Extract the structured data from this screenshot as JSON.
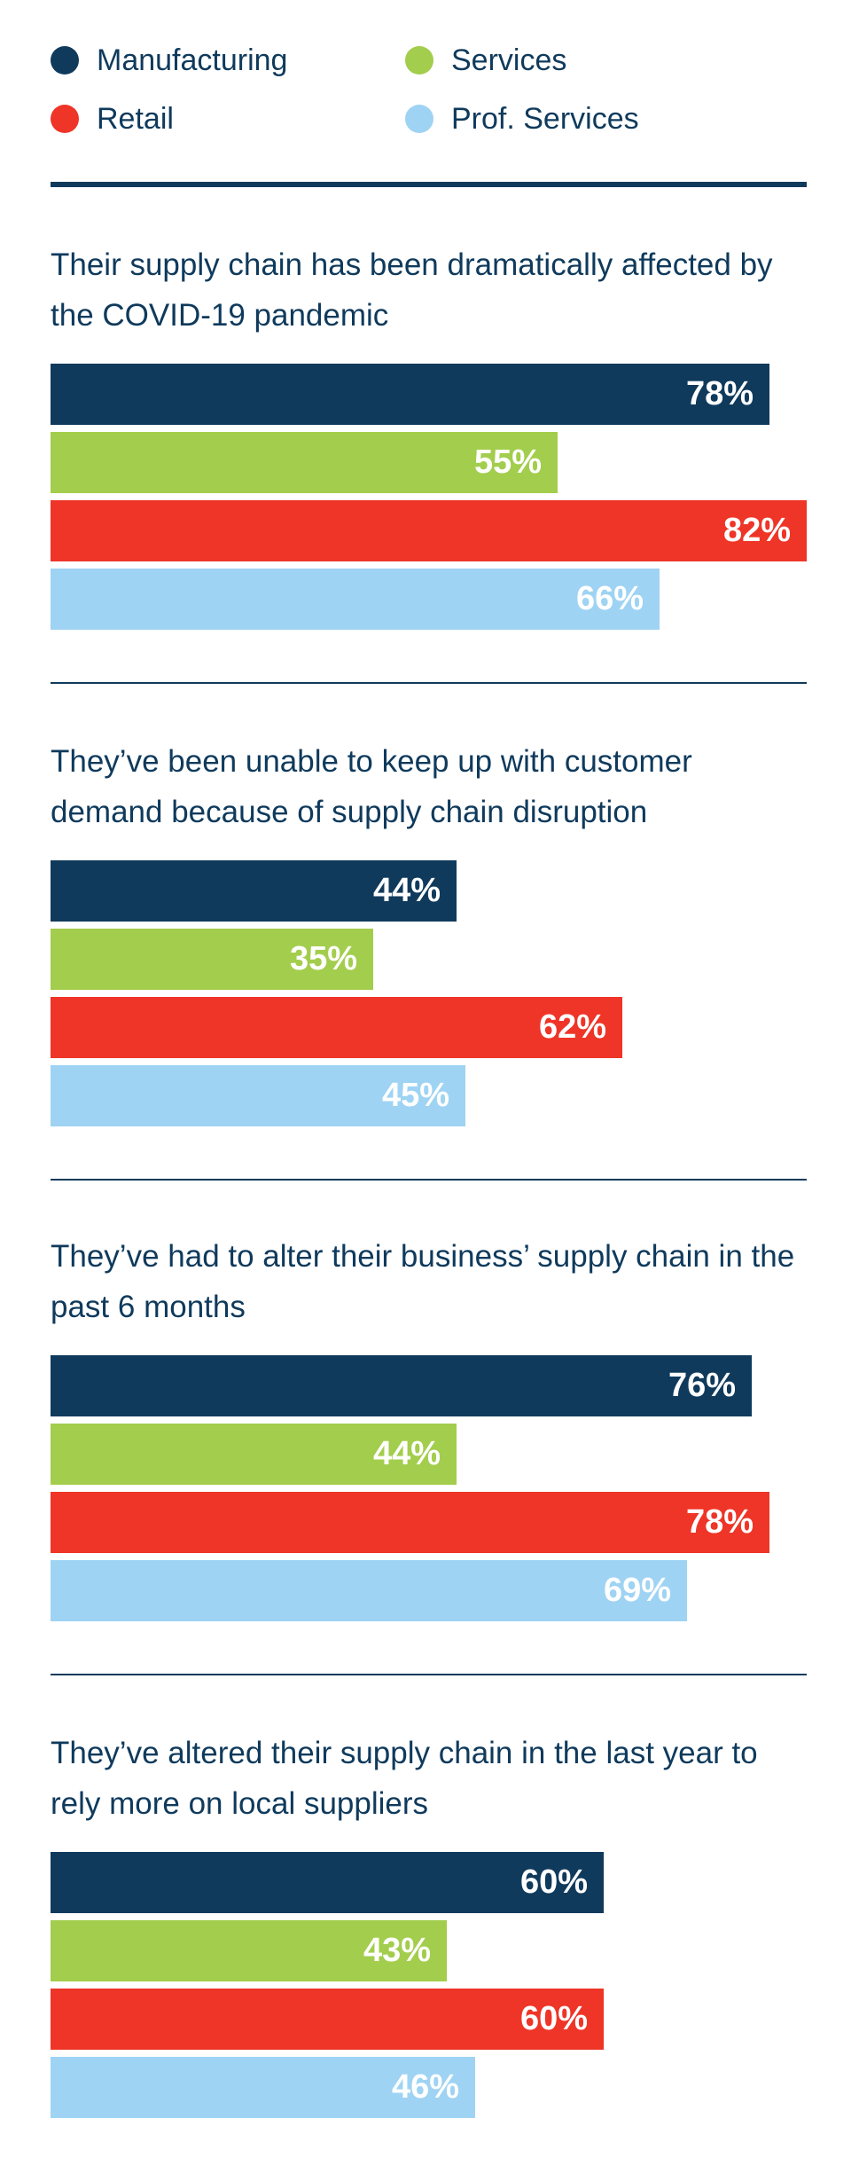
{
  "legend": [
    {
      "name": "Manufacturing",
      "color": "#0f3a5c"
    },
    {
      "name": "Services",
      "color": "#a3cd4c"
    },
    {
      "name": "Retail",
      "color": "#ee3527"
    },
    {
      "name": "Prof. Services",
      "color": "#9fd3f3"
    }
  ],
  "chart_data": {
    "type": "bar",
    "orientation": "horizontal",
    "value_unit": "%",
    "xlim": [
      0,
      82
    ],
    "series": [
      {
        "name": "Manufacturing",
        "color": "#0f3a5c",
        "values": [
          78,
          44,
          76,
          60
        ]
      },
      {
        "name": "Services",
        "color": "#a3cd4c",
        "values": [
          55,
          35,
          44,
          43
        ]
      },
      {
        "name": "Retail",
        "color": "#ee3527",
        "values": [
          82,
          62,
          78,
          60
        ]
      },
      {
        "name": "Prof. Services",
        "color": "#9fd3f3",
        "values": [
          66,
          45,
          69,
          46
        ]
      }
    ],
    "groups": [
      {
        "question": "Their supply chain has been dramatically affected by the COVID-19 pandemic",
        "bars": [
          {
            "series": "Manufacturing",
            "value": 78,
            "label": "78%"
          },
          {
            "series": "Services",
            "value": 55,
            "label": "55%"
          },
          {
            "series": "Retail",
            "value": 82,
            "label": "82%"
          },
          {
            "series": "Prof. Services",
            "value": 66,
            "label": "66%"
          }
        ]
      },
      {
        "question": "They’ve been unable to keep up with customer demand because of supply chain disruption",
        "bars": [
          {
            "series": "Manufacturing",
            "value": 44,
            "label": "44%"
          },
          {
            "series": "Services",
            "value": 35,
            "label": "35%"
          },
          {
            "series": "Retail",
            "value": 62,
            "label": "62%"
          },
          {
            "series": "Prof. Services",
            "value": 45,
            "label": "45%"
          }
        ]
      },
      {
        "question": "They’ve had to alter their business’ supply chain in the past 6 months",
        "bars": [
          {
            "series": "Manufacturing",
            "value": 76,
            "label": "76%"
          },
          {
            "series": "Services",
            "value": 44,
            "label": "44%"
          },
          {
            "series": "Retail",
            "value": 78,
            "label": "78%"
          },
          {
            "series": "Prof. Services",
            "value": 69,
            "label": "69%"
          }
        ]
      },
      {
        "question": "They’ve altered their supply chain in the last year to rely more on local suppliers",
        "bars": [
          {
            "series": "Manufacturing",
            "value": 60,
            "label": "60%"
          },
          {
            "series": "Services",
            "value": 43,
            "label": "43%"
          },
          {
            "series": "Retail",
            "value": 60,
            "label": "60%"
          },
          {
            "series": "Prof. Services",
            "value": 46,
            "label": "46%"
          }
        ]
      }
    ]
  }
}
